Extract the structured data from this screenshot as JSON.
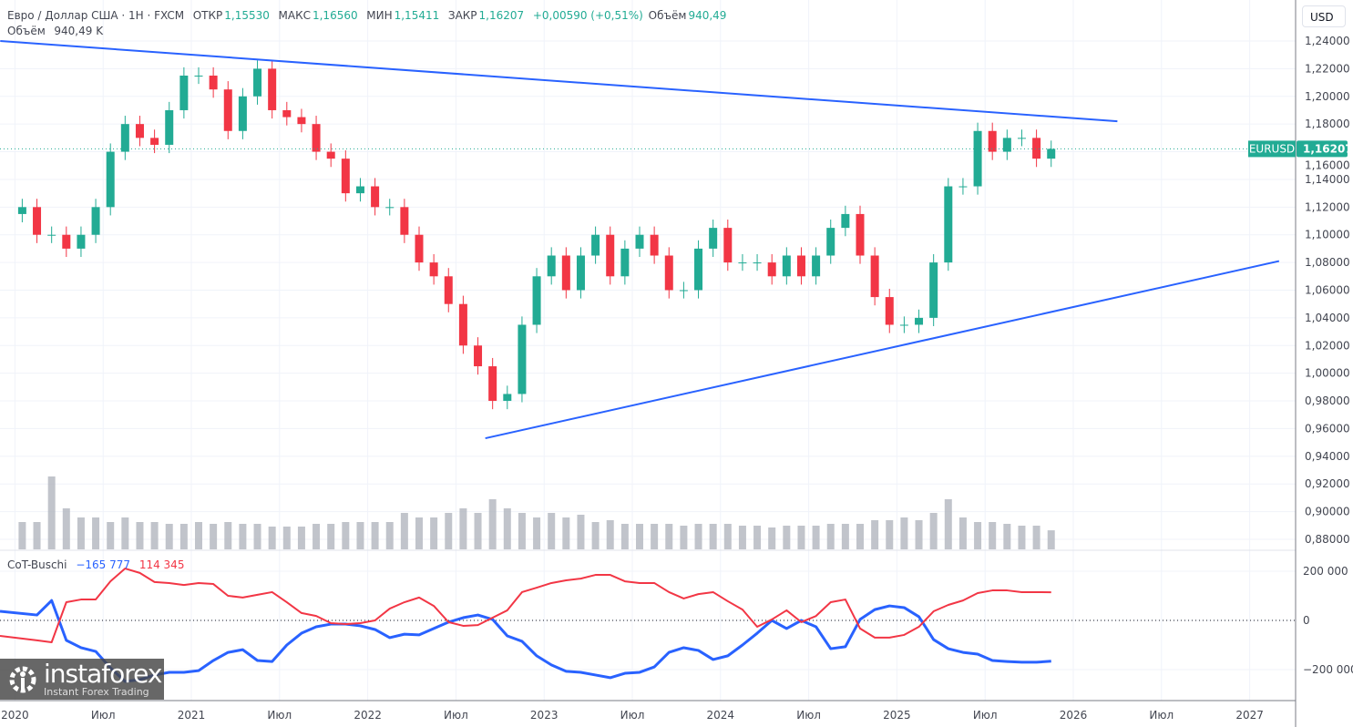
{
  "header": {
    "symbol_desc": "Евро / Доллар США · 1Н · FXCM",
    "open_label": "ОТКР",
    "open": "1,15530",
    "high_label": "МАКС",
    "high": "1,16560",
    "low_label": "МИН",
    "low": "1,15411",
    "close_label": "ЗАКР",
    "close": "1,16207",
    "change": "+0,00590 (+0,51%)",
    "volume_label": "Объём",
    "volume": "940,49 K",
    "volume_inline": "940,49"
  },
  "currency_button": "USD",
  "price_tag": {
    "symbol": "EURUSD",
    "value": "1,16207"
  },
  "cot_legend": {
    "name": "CoT-Buschi",
    "blue_value": "−165 777",
    "red_value": "114 345"
  },
  "logo": {
    "name": "instaforex",
    "tagline": "Instant Forex Trading"
  },
  "colors": {
    "up": "#22ab94",
    "down": "#f23645",
    "trendline": "#2962ff",
    "cot_blue": "#2962ff",
    "cot_red": "#f23645",
    "volume": "#b2b5be",
    "price_line": "#22ab94"
  },
  "chart_data": [
    {
      "type": "candlestick",
      "interval": "monthly samples",
      "start": "2020-01",
      "ylim": [
        0.87,
        1.25
      ],
      "y_ticks": [
        "1,24000",
        "1,22000",
        "1,20000",
        "1,18000",
        "1,16000",
        "1,14000",
        "1,12000",
        "1,10000",
        "1,08000",
        "1,06000",
        "1,04000",
        "1,02000",
        "1,00000",
        "0,98000",
        "0,96000",
        "0,94000",
        "0,92000",
        "0,90000",
        "0,88000"
      ],
      "y_tick_values": [
        1.24,
        1.22,
        1.2,
        1.18,
        1.16,
        1.14,
        1.12,
        1.1,
        1.08,
        1.06,
        1.04,
        1.02,
        1.0,
        0.98,
        0.96,
        0.94,
        0.92,
        0.9,
        0.88
      ],
      "close": [
        1.12,
        1.1,
        1.1,
        1.09,
        1.1,
        1.12,
        1.16,
        1.18,
        1.17,
        1.165,
        1.19,
        1.215,
        1.215,
        1.205,
        1.175,
        1.2,
        1.22,
        1.19,
        1.185,
        1.18,
        1.16,
        1.155,
        1.13,
        1.135,
        1.12,
        1.12,
        1.1,
        1.08,
        1.07,
        1.05,
        1.02,
        1.005,
        0.98,
        0.985,
        1.035,
        1.07,
        1.085,
        1.06,
        1.085,
        1.1,
        1.07,
        1.09,
        1.1,
        1.085,
        1.06,
        1.06,
        1.09,
        1.105,
        1.08,
        1.08,
        1.08,
        1.07,
        1.085,
        1.07,
        1.085,
        1.105,
        1.115,
        1.085,
        1.055,
        1.035,
        1.035,
        1.04,
        1.08,
        1.135,
        1.135,
        1.175,
        1.16,
        1.17,
        1.17,
        1.155,
        1.16207
      ],
      "first_open": 1.115,
      "volume_k": [
        1350,
        1350,
        3600,
        2025,
        1575,
        1575,
        1350,
        1575,
        1350,
        1350,
        1260,
        1260,
        1350,
        1260,
        1350,
        1260,
        1260,
        1125,
        1125,
        1125,
        1260,
        1260,
        1350,
        1350,
        1350,
        1350,
        1800,
        1575,
        1575,
        1800,
        2025,
        1800,
        2475,
        2025,
        1800,
        1575,
        1800,
        1575,
        1710,
        1350,
        1440,
        1260,
        1260,
        1260,
        1260,
        1170,
        1260,
        1260,
        1260,
        1170,
        1170,
        1080,
        1170,
        1170,
        1170,
        1260,
        1260,
        1260,
        1440,
        1440,
        1575,
        1440,
        1800,
        2475,
        1575,
        1350,
        1350,
        1260,
        1170,
        1170,
        940.49
      ],
      "trendlines": [
        {
          "from": [
            "2019-12",
            1.24
          ],
          "to": [
            "2026-04",
            1.182
          ]
        },
        {
          "from": [
            "2022-09",
            0.953
          ],
          "to": [
            "2027-03",
            1.081
          ]
        }
      ],
      "last_price": 1.16207
    },
    {
      "type": "line",
      "name": "CoT-Buschi",
      "start": "2020-01",
      "ylim": [
        -330000,
        280000
      ],
      "y_ticks": [
        "200 000",
        "0",
        "−200 000"
      ],
      "y_tick_values": [
        200000,
        0,
        -200000
      ],
      "series": [
        {
          "values": [
            37000,
            22000,
            81000,
            -81000,
            -111000,
            -126000,
            -193000,
            -248000,
            -241000,
            -222000,
            -211000,
            -211000,
            -204000,
            -163000,
            -130000,
            -119000,
            -163000,
            -167000,
            -100000,
            -52000,
            -26000,
            -15000,
            -15000,
            -22000,
            -37000,
            -70000,
            -56000,
            -59000,
            -33000,
            -7000,
            11000,
            22000,
            4000,
            -63000,
            -85000,
            -144000,
            -181000,
            -207000,
            -211000,
            -222000,
            -233000,
            -215000,
            -211000,
            -189000,
            -130000,
            -111000,
            -122000,
            -159000,
            -144000,
            -100000,
            -52000,
            0,
            -33000,
            0,
            -26000,
            -115000,
            -107000,
            4000,
            44000,
            59000,
            52000,
            15000,
            -78000,
            -115000,
            -130000,
            -137000,
            -163000,
            -167000,
            -170000,
            -170000,
            -165777
          ]
        },
        {
          "values": [
            -63000,
            -81000,
            -89000,
            74000,
            85000,
            85000,
            159000,
            211000,
            193000,
            156000,
            152000,
            144000,
            152000,
            148000,
            100000,
            93000,
            104000,
            115000,
            74000,
            30000,
            18000,
            -11000,
            -15000,
            -11000,
            0,
            48000,
            74000,
            93000,
            59000,
            -7000,
            -22000,
            -19000,
            11000,
            41000,
            115000,
            133000,
            152000,
            163000,
            170000,
            185000,
            185000,
            159000,
            152000,
            152000,
            115000,
            89000,
            107000,
            115000,
            78000,
            44000,
            -26000,
            4000,
            41000,
            -7000,
            18000,
            74000,
            85000,
            -33000,
            -70000,
            -70000,
            -59000,
            -26000,
            37000,
            63000,
            81000,
            111000,
            122000,
            122000,
            115000,
            115000,
            114345
          ]
        }
      ]
    }
  ],
  "time_axis": [
    {
      "label": "2020",
      "date": "2020-01"
    },
    {
      "label": "Июл",
      "date": "2020-07"
    },
    {
      "label": "2021",
      "date": "2021-01"
    },
    {
      "label": "Июл",
      "date": "2021-07"
    },
    {
      "label": "2022",
      "date": "2022-01"
    },
    {
      "label": "Июл",
      "date": "2022-07"
    },
    {
      "label": "2023",
      "date": "2023-01"
    },
    {
      "label": "Июл",
      "date": "2023-07"
    },
    {
      "label": "2024",
      "date": "2024-01"
    },
    {
      "label": "Июл",
      "date": "2024-07"
    },
    {
      "label": "2025",
      "date": "2025-01"
    },
    {
      "label": "Июл",
      "date": "2025-07"
    },
    {
      "label": "2026",
      "date": "2026-01"
    },
    {
      "label": "Июл",
      "date": "2026-07"
    },
    {
      "label": "2027",
      "date": "2027-01"
    }
  ]
}
